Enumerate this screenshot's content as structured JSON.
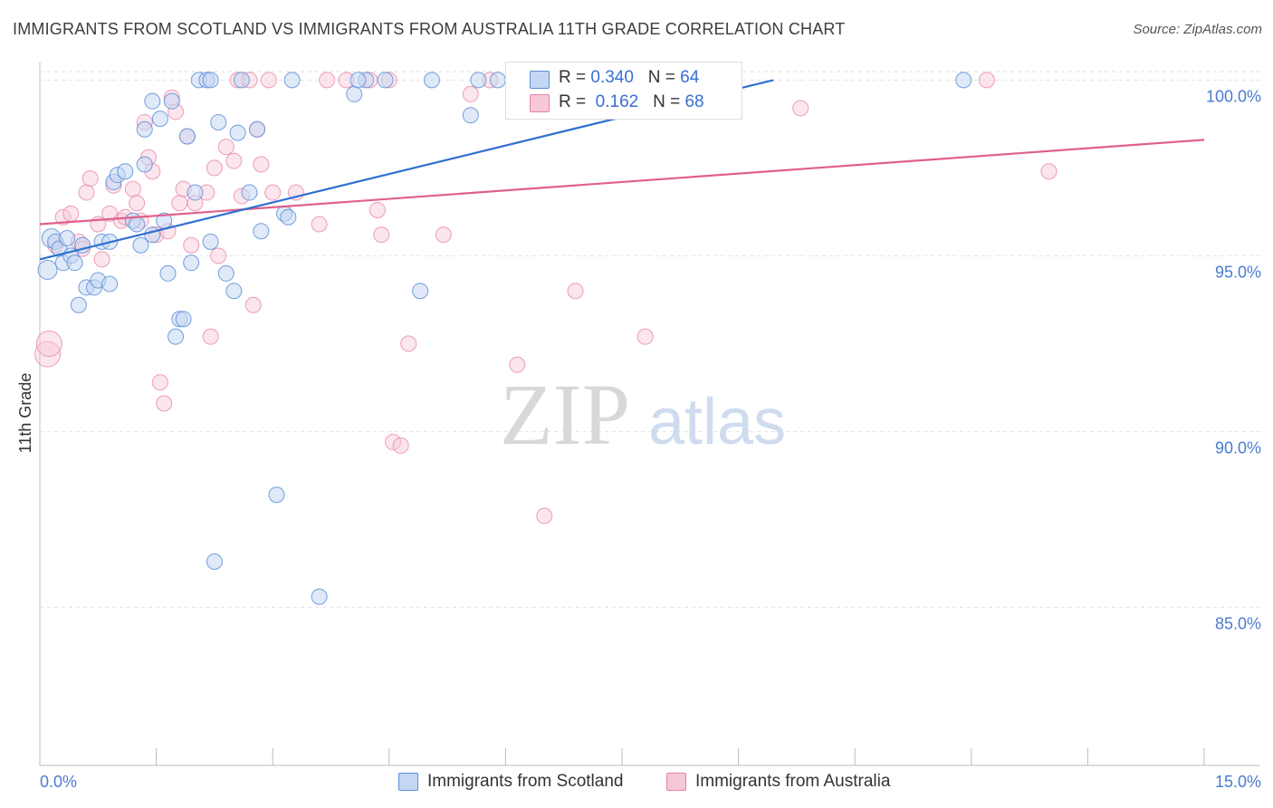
{
  "title": "IMMIGRANTS FROM SCOTLAND VS IMMIGRANTS FROM AUSTRALIA 11TH GRADE CORRELATION CHART",
  "source": "Source: ZipAtlas.com",
  "watermark": {
    "zip": "ZIP",
    "atlas": "atlas"
  },
  "legend": {
    "r_label": "R =",
    "n_label": "N =",
    "scotland": {
      "r": "0.340",
      "n": "64"
    },
    "australia": {
      "r": "0.162",
      "n": "68"
    }
  },
  "bottom_legend": {
    "scotland": "Immigrants from Scotland",
    "australia": "Immigrants from Australia"
  },
  "colors": {
    "scotland": "#5b8fd8",
    "scotland_fill": "#c4d7f2",
    "australia": "#e87fa2",
    "australia_fill": "#f6c8d6",
    "scotland_line": "#3070d0",
    "australia_line": "#e0608a",
    "axis_label": "#4a7bd0"
  },
  "chart_data": {
    "type": "scatter",
    "title": "IMMIGRANTS FROM SCOTLAND VS IMMIGRANTS FROM AUSTRALIA 11TH GRADE CORRELATION CHART",
    "xlabel": "",
    "ylabel": "11th Grade",
    "xlim": [
      0,
      15
    ],
    "ylim": [
      80.5,
      100.5
    ],
    "x_tick_labels": [
      "0.0%",
      "15.0%"
    ],
    "y_ticks": [
      85,
      90,
      95,
      100
    ],
    "y_tick_labels": [
      "85.0%",
      "90.0%",
      "95.0%",
      "100.0%"
    ],
    "grid": true,
    "series": [
      {
        "name": "Immigrants from Scotland",
        "trend": {
          "x": [
            0,
            9.45
          ],
          "y": [
            94.9,
            100
          ]
        },
        "points": [
          [
            0.1,
            94.6
          ],
          [
            0.15,
            95.5
          ],
          [
            0.2,
            95.4
          ],
          [
            0.25,
            95.2
          ],
          [
            0.3,
            94.8
          ],
          [
            0.35,
            95.5
          ],
          [
            0.4,
            95.0
          ],
          [
            0.45,
            94.8
          ],
          [
            0.5,
            93.6
          ],
          [
            0.6,
            94.1
          ],
          [
            0.7,
            94.1
          ],
          [
            0.75,
            94.3
          ],
          [
            0.8,
            95.4
          ],
          [
            0.9,
            94.2
          ],
          [
            0.95,
            97.1
          ],
          [
            1.0,
            97.3
          ],
          [
            1.1,
            97.4
          ],
          [
            1.2,
            96.0
          ],
          [
            1.25,
            95.9
          ],
          [
            1.3,
            95.3
          ],
          [
            1.35,
            97.6
          ],
          [
            1.45,
            95.6
          ],
          [
            1.45,
            99.4
          ],
          [
            1.55,
            98.9
          ],
          [
            1.6,
            96.0
          ],
          [
            1.65,
            94.5
          ],
          [
            1.75,
            92.7
          ],
          [
            1.8,
            93.2
          ],
          [
            1.85,
            93.2
          ],
          [
            1.9,
            98.4
          ],
          [
            1.95,
            94.8
          ],
          [
            2.0,
            96.8
          ],
          [
            2.05,
            100
          ],
          [
            2.15,
            100
          ],
          [
            2.2,
            95.4
          ],
          [
            2.25,
            86.3
          ],
          [
            2.3,
            98.8
          ],
          [
            2.4,
            94.5
          ],
          [
            2.5,
            94.0
          ],
          [
            2.55,
            98.5
          ],
          [
            2.6,
            100
          ],
          [
            2.7,
            96.8
          ],
          [
            2.8,
            98.6
          ],
          [
            2.85,
            95.7
          ],
          [
            3.05,
            88.2
          ],
          [
            3.15,
            96.2
          ],
          [
            3.2,
            96.1
          ],
          [
            3.25,
            100
          ],
          [
            3.6,
            85.3
          ],
          [
            4.05,
            99.6
          ],
          [
            4.2,
            100
          ],
          [
            4.45,
            100
          ],
          [
            4.9,
            94.0
          ],
          [
            5.05,
            100
          ],
          [
            5.55,
            99.0
          ],
          [
            5.65,
            100
          ],
          [
            5.9,
            100
          ],
          [
            11.9,
            100
          ],
          [
            1.35,
            98.6
          ],
          [
            1.7,
            99.4
          ],
          [
            0.55,
            95.3
          ],
          [
            0.9,
            95.4
          ],
          [
            2.2,
            100
          ],
          [
            4.1,
            100
          ]
        ]
      },
      {
        "name": "Immigrants from Australia",
        "trend": {
          "x": [
            0,
            15
          ],
          "y": [
            95.9,
            98.3
          ]
        },
        "points": [
          [
            0.1,
            92.2
          ],
          [
            0.12,
            92.5
          ],
          [
            0.2,
            95.3
          ],
          [
            0.3,
            96.1
          ],
          [
            0.4,
            96.2
          ],
          [
            0.5,
            95.4
          ],
          [
            0.55,
            95.2
          ],
          [
            0.6,
            96.8
          ],
          [
            0.65,
            97.2
          ],
          [
            0.75,
            95.9
          ],
          [
            0.8,
            94.9
          ],
          [
            0.9,
            96.2
          ],
          [
            0.95,
            97.0
          ],
          [
            1.05,
            96.0
          ],
          [
            1.1,
            96.1
          ],
          [
            1.2,
            96.9
          ],
          [
            1.25,
            96.5
          ],
          [
            1.3,
            96.0
          ],
          [
            1.35,
            98.8
          ],
          [
            1.4,
            97.8
          ],
          [
            1.45,
            97.4
          ],
          [
            1.5,
            95.6
          ],
          [
            1.55,
            91.4
          ],
          [
            1.6,
            90.8
          ],
          [
            1.65,
            95.7
          ],
          [
            1.7,
            99.5
          ],
          [
            1.75,
            99.1
          ],
          [
            1.8,
            96.5
          ],
          [
            1.85,
            96.9
          ],
          [
            1.9,
            98.4
          ],
          [
            1.95,
            95.3
          ],
          [
            2.0,
            96.5
          ],
          [
            2.15,
            96.8
          ],
          [
            2.2,
            92.7
          ],
          [
            2.25,
            97.5
          ],
          [
            2.3,
            95.0
          ],
          [
            2.4,
            98.1
          ],
          [
            2.5,
            97.7
          ],
          [
            2.55,
            100
          ],
          [
            2.6,
            96.7
          ],
          [
            2.7,
            100
          ],
          [
            2.75,
            93.6
          ],
          [
            2.8,
            98.6
          ],
          [
            2.85,
            97.6
          ],
          [
            2.95,
            100
          ],
          [
            3.0,
            96.8
          ],
          [
            3.3,
            96.8
          ],
          [
            3.6,
            95.9
          ],
          [
            3.7,
            100
          ],
          [
            3.95,
            100
          ],
          [
            4.25,
            100
          ],
          [
            4.35,
            96.3
          ],
          [
            4.4,
            95.6
          ],
          [
            4.5,
            100
          ],
          [
            4.55,
            89.7
          ],
          [
            4.65,
            89.6
          ],
          [
            4.75,
            92.5
          ],
          [
            5.2,
            95.6
          ],
          [
            5.55,
            99.6
          ],
          [
            5.8,
            100
          ],
          [
            6.15,
            91.9
          ],
          [
            6.35,
            100
          ],
          [
            6.5,
            87.6
          ],
          [
            6.9,
            94.0
          ],
          [
            7.8,
            92.7
          ],
          [
            9.8,
            99.2
          ],
          [
            12.2,
            100
          ],
          [
            13.0,
            97.4
          ]
        ]
      }
    ]
  }
}
